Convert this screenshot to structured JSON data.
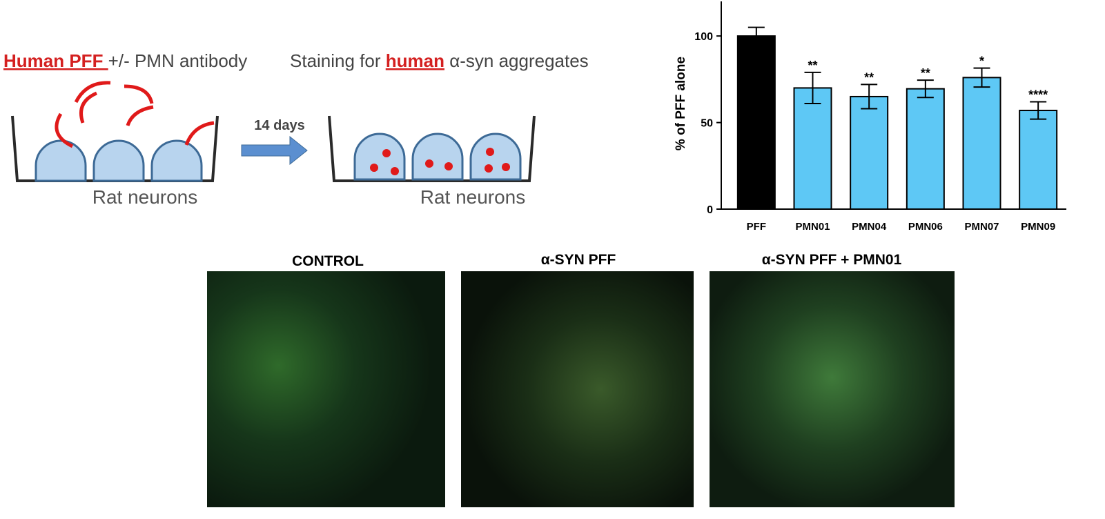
{
  "diagram": {
    "treatment": [
      "Human PFF ",
      "+/- PMN antibody"
    ],
    "staining": [
      "Staining for ",
      "human",
      " α-syn aggregates"
    ],
    "duration": "14 days",
    "cells": "Rat neurons"
  },
  "images": {
    "titles": [
      "CONTROL",
      "α-SYN PFF",
      "α-SYN PFF + PMN01"
    ]
  },
  "chart_data": {
    "type": "bar",
    "y_label": "% of PFF alone",
    "categories": [
      "PFF",
      "PMN01",
      "PMN04",
      "PMN06",
      "PMN07",
      "PMN09"
    ],
    "values": [
      100,
      70,
      65,
      69.5,
      76,
      57
    ],
    "errors": [
      5,
      9,
      7,
      5,
      5.5,
      5
    ],
    "annotations": [
      null,
      "**",
      "**",
      "**",
      "*",
      "****"
    ],
    "colors": [
      "#000000",
      "#5ec8f5",
      "#5ec8f5",
      "#5ec8f5",
      "#5ec8f5",
      "#5ec8f5"
    ],
    "ylim": [
      0,
      120
    ],
    "yticks": [
      0,
      50,
      100
    ]
  }
}
